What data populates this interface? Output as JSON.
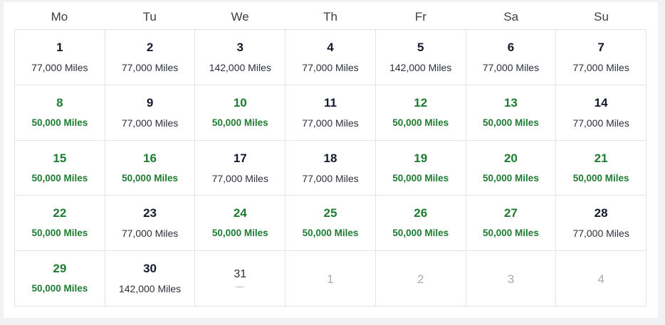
{
  "weekdays": [
    "Mo",
    "Tu",
    "We",
    "Th",
    "Fr",
    "Sa",
    "Su"
  ],
  "days": [
    {
      "day": "1",
      "miles": "77,000 Miles",
      "deal": false
    },
    {
      "day": "2",
      "miles": "77,000 Miles",
      "deal": false
    },
    {
      "day": "3",
      "miles": "142,000 Miles",
      "deal": false
    },
    {
      "day": "4",
      "miles": "77,000 Miles",
      "deal": false
    },
    {
      "day": "5",
      "miles": "142,000 Miles",
      "deal": false
    },
    {
      "day": "6",
      "miles": "77,000 Miles",
      "deal": false
    },
    {
      "day": "7",
      "miles": "77,000 Miles",
      "deal": false
    },
    {
      "day": "8",
      "miles": "50,000 Miles",
      "deal": true
    },
    {
      "day": "9",
      "miles": "77,000 Miles",
      "deal": false
    },
    {
      "day": "10",
      "miles": "50,000 Miles",
      "deal": true
    },
    {
      "day": "11",
      "miles": "77,000 Miles",
      "deal": false
    },
    {
      "day": "12",
      "miles": "50,000 Miles",
      "deal": true
    },
    {
      "day": "13",
      "miles": "50,000 Miles",
      "deal": true
    },
    {
      "day": "14",
      "miles": "77,000 Miles",
      "deal": false
    },
    {
      "day": "15",
      "miles": "50,000 Miles",
      "deal": true
    },
    {
      "day": "16",
      "miles": "50,000 Miles",
      "deal": true
    },
    {
      "day": "17",
      "miles": "77,000 Miles",
      "deal": false
    },
    {
      "day": "18",
      "miles": "77,000 Miles",
      "deal": false
    },
    {
      "day": "19",
      "miles": "50,000 Miles",
      "deal": true
    },
    {
      "day": "20",
      "miles": "50,000 Miles",
      "deal": true
    },
    {
      "day": "21",
      "miles": "50,000 Miles",
      "deal": true
    },
    {
      "day": "22",
      "miles": "50,000 Miles",
      "deal": true
    },
    {
      "day": "23",
      "miles": "77,000 Miles",
      "deal": false
    },
    {
      "day": "24",
      "miles": "50,000 Miles",
      "deal": true
    },
    {
      "day": "25",
      "miles": "50,000 Miles",
      "deal": true
    },
    {
      "day": "26",
      "miles": "50,000 Miles",
      "deal": true
    },
    {
      "day": "27",
      "miles": "50,000 Miles",
      "deal": true
    },
    {
      "day": "28",
      "miles": "77,000 Miles",
      "deal": false
    },
    {
      "day": "29",
      "miles": "50,000 Miles",
      "deal": true
    },
    {
      "day": "30",
      "miles": "142,000 Miles",
      "deal": false
    },
    {
      "day": "31",
      "miles": "",
      "deal": false,
      "loading": true
    }
  ],
  "next_month_days": [
    "1",
    "2",
    "3",
    "4"
  ],
  "colors": {
    "deal": "#1e7b32",
    "regular": "#141a2e",
    "muted": "#a8acb3",
    "border": "#e2e4e8"
  }
}
